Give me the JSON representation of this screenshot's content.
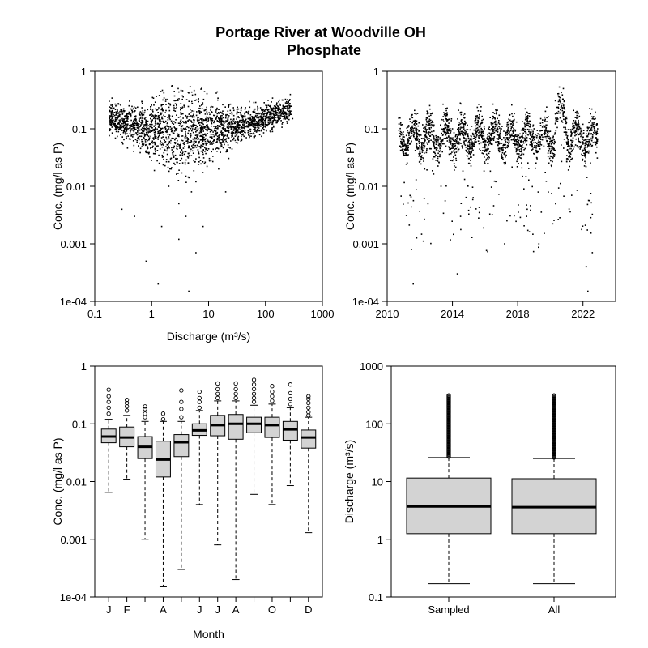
{
  "title": [
    "Portage River at Woodville OH",
    "Phosphate"
  ],
  "chart_data": [
    {
      "type": "scatter",
      "panel": "concentration-vs-discharge",
      "xlabel": "Discharge (m³/s)",
      "ylabel": "Conc. (mg/l as P)",
      "xscale": "log",
      "yscale": "log",
      "xlim": [
        0.1,
        1000
      ],
      "ylim": [
        0.0001,
        1
      ],
      "x_ticks": [
        "0.1",
        "1",
        "10",
        "100",
        "1000"
      ],
      "y_ticks": [
        "1e-04",
        "0.001",
        "0.01",
        "0.1",
        "1"
      ],
      "x_tick_values": [
        0.1,
        1,
        10,
        100,
        1000
      ],
      "y_tick_values": [
        0.0001,
        0.001,
        0.01,
        0.1,
        1
      ],
      "points": [
        [
          0.18,
          0.3
        ],
        [
          0.2,
          0.15
        ],
        [
          0.25,
          0.12
        ],
        [
          0.3,
          0.2
        ],
        [
          0.35,
          0.08
        ],
        [
          0.4,
          0.25
        ],
        [
          0.5,
          0.1
        ],
        [
          0.6,
          0.18
        ],
        [
          0.7,
          0.06
        ],
        [
          0.8,
          0.12
        ],
        [
          1,
          0.09
        ],
        [
          1.2,
          0.15
        ],
        [
          1.5,
          0.07
        ],
        [
          2,
          0.1
        ],
        [
          2.5,
          0.05
        ],
        [
          3,
          0.08
        ],
        [
          4,
          0.04
        ],
        [
          5,
          0.06
        ],
        [
          6,
          0.03
        ],
        [
          8,
          0.05
        ],
        [
          10,
          0.06
        ],
        [
          12,
          0.08
        ],
        [
          15,
          0.07
        ],
        [
          20,
          0.09
        ],
        [
          30,
          0.1
        ],
        [
          40,
          0.12
        ],
        [
          60,
          0.11
        ],
        [
          80,
          0.13
        ],
        [
          100,
          0.12
        ],
        [
          150,
          0.14
        ],
        [
          200,
          0.13
        ],
        [
          300,
          0.15
        ],
        [
          2,
          0.01
        ],
        [
          3,
          0.005
        ],
        [
          4,
          0.003
        ],
        [
          5,
          0.008
        ],
        [
          1.5,
          0.002
        ],
        [
          0.8,
          0.0005
        ],
        [
          1.3,
          0.0002
        ],
        [
          4.5,
          0.00015
        ],
        [
          6,
          0.0007
        ],
        [
          3,
          0.0012
        ],
        [
          8,
          0.002
        ],
        [
          0.3,
          0.004
        ],
        [
          0.5,
          0.003
        ],
        [
          20,
          0.008
        ],
        [
          15,
          0.02
        ],
        [
          2.2,
          0.02
        ],
        [
          4,
          0.015
        ],
        [
          6,
          0.012
        ]
      ]
    },
    {
      "type": "scatter",
      "panel": "concentration-vs-time",
      "xlabel": "",
      "ylabel": "Conc. (mg/l as P)",
      "yscale": "log",
      "xlim": [
        2010,
        2024
      ],
      "ylim": [
        0.0001,
        1
      ],
      "x_ticks": [
        "2010",
        "2014",
        "2018",
        "2022"
      ],
      "y_ticks": [
        "1e-04",
        "0.001",
        "0.01",
        "0.1",
        "1"
      ],
      "x_tick_values": [
        2010,
        2014,
        2018,
        2022
      ],
      "y_tick_values": [
        0.0001,
        0.001,
        0.01,
        0.1,
        1
      ],
      "x_range_of_data": [
        2010.7,
        2022.9
      ],
      "points": [
        [
          2010.8,
          0.05
        ],
        [
          2011,
          0.08
        ],
        [
          2011.3,
          0.06
        ],
        [
          2011.5,
          0.0008
        ],
        [
          2011.6,
          0.0002
        ],
        [
          2011.8,
          0.1
        ],
        [
          2012,
          0.04
        ],
        [
          2012.3,
          0.02
        ],
        [
          2012.5,
          0.005
        ],
        [
          2012.8,
          0.03
        ],
        [
          2013,
          0.06
        ],
        [
          2013.3,
          0.01
        ],
        [
          2013.6,
          0.05
        ],
        [
          2014,
          0.1
        ],
        [
          2014.3,
          0.0003
        ],
        [
          2014.5,
          0.003
        ],
        [
          2014.8,
          0.08
        ],
        [
          2015,
          0.05
        ],
        [
          2015.5,
          0.12
        ],
        [
          2016,
          0.06
        ],
        [
          2016.5,
          0.09
        ],
        [
          2017,
          0.1
        ],
        [
          2017.2,
          0.001
        ],
        [
          2017.5,
          0.07
        ],
        [
          2018,
          0.08
        ],
        [
          2018.5,
          0.06
        ],
        [
          2019,
          0.1
        ],
        [
          2019.3,
          0.001
        ],
        [
          2019.6,
          0.05
        ],
        [
          2020,
          0.09
        ],
        [
          2020.5,
          0.2
        ],
        [
          2020.8,
          0.5
        ],
        [
          2021,
          0.15
        ],
        [
          2021.3,
          0.04
        ],
        [
          2021.6,
          0.1
        ],
        [
          2022,
          0.12
        ],
        [
          2022.2,
          0.0004
        ],
        [
          2022.3,
          0.00015
        ],
        [
          2022.6,
          0.15
        ],
        [
          2022.9,
          0.1
        ]
      ]
    },
    {
      "type": "boxplot",
      "panel": "concentration-by-month",
      "xlabel": "Month",
      "ylabel": "Conc. (mg/l as P)",
      "yscale": "log",
      "ylim": [
        0.0001,
        1
      ],
      "y_ticks": [
        "1e-04",
        "0.001",
        "0.01",
        "0.1",
        "1"
      ],
      "y_tick_values": [
        0.0001,
        0.001,
        0.01,
        0.1,
        1
      ],
      "month_labels": [
        "J",
        "F",
        "",
        "A",
        "",
        "J",
        "J",
        "A",
        "",
        "O",
        "",
        "D"
      ],
      "boxes": [
        {
          "month": 1,
          "wlo": 0.0065,
          "q1": 0.047,
          "med": 0.06,
          "q3": 0.081,
          "whi": 0.12,
          "outliers": [
            0.15,
            0.19,
            0.24,
            0.3,
            0.39
          ]
        },
        {
          "month": 2,
          "wlo": 0.011,
          "q1": 0.04,
          "med": 0.058,
          "q3": 0.088,
          "whi": 0.14,
          "outliers": [
            0.17,
            0.2,
            0.23,
            0.26
          ]
        },
        {
          "month": 3,
          "wlo": 0.001,
          "q1": 0.025,
          "med": 0.04,
          "q3": 0.06,
          "whi": 0.11,
          "outliers": [
            0.13,
            0.15,
            0.18,
            0.2
          ]
        },
        {
          "month": 4,
          "wlo": 0.00015,
          "q1": 0.012,
          "med": 0.024,
          "q3": 0.05,
          "whi": 0.11,
          "outliers": [
            0.12,
            0.15
          ]
        },
        {
          "month": 5,
          "wlo": 0.0003,
          "q1": 0.027,
          "med": 0.048,
          "q3": 0.065,
          "whi": 0.11,
          "outliers": [
            0.13,
            0.18,
            0.24,
            0.38
          ]
        },
        {
          "month": 6,
          "wlo": 0.004,
          "q1": 0.063,
          "med": 0.077,
          "q3": 0.1,
          "whi": 0.17,
          "outliers": [
            0.19,
            0.24,
            0.28,
            0.36
          ]
        },
        {
          "month": 7,
          "wlo": 0.0008,
          "q1": 0.062,
          "med": 0.095,
          "q3": 0.14,
          "whi": 0.25,
          "outliers": [
            0.28,
            0.33,
            0.4,
            0.5
          ]
        },
        {
          "month": 8,
          "wlo": 0.0002,
          "q1": 0.054,
          "med": 0.1,
          "q3": 0.145,
          "whi": 0.25,
          "outliers": [
            0.28,
            0.33,
            0.4,
            0.5
          ]
        },
        {
          "month": 9,
          "wlo": 0.006,
          "q1": 0.07,
          "med": 0.1,
          "q3": 0.13,
          "whi": 0.21,
          "outliers": [
            0.24,
            0.28,
            0.33,
            0.4,
            0.48,
            0.58
          ]
        },
        {
          "month": 10,
          "wlo": 0.004,
          "q1": 0.058,
          "med": 0.095,
          "q3": 0.13,
          "whi": 0.22,
          "outliers": [
            0.25,
            0.3,
            0.36,
            0.45
          ]
        },
        {
          "month": 11,
          "wlo": 0.0085,
          "q1": 0.052,
          "med": 0.08,
          "q3": 0.11,
          "whi": 0.19,
          "outliers": [
            0.22,
            0.27,
            0.34,
            0.48
          ]
        },
        {
          "month": 12,
          "wlo": 0.0013,
          "q1": 0.038,
          "med": 0.058,
          "q3": 0.078,
          "whi": 0.13,
          "outliers": [
            0.14,
            0.16,
            0.19,
            0.23,
            0.27,
            0.3
          ]
        }
      ]
    },
    {
      "type": "boxplot",
      "panel": "discharge-sampled-vs-all",
      "xlabel": "",
      "ylabel": "Discharge (m³/s)",
      "yscale": "log",
      "ylim": [
        0.1,
        1000
      ],
      "y_ticks": [
        "0.1",
        "1",
        "10",
        "100",
        "1000"
      ],
      "y_tick_values": [
        0.1,
        1,
        10,
        100,
        1000
      ],
      "boxes": [
        {
          "label": "Sampled",
          "wlo": 0.17,
          "q1": 1.25,
          "med": 3.7,
          "q3": 11.5,
          "whi": 26,
          "outlier_range": [
            27,
            320
          ]
        },
        {
          "label": "All",
          "wlo": 0.17,
          "q1": 1.25,
          "med": 3.6,
          "q3": 11.2,
          "whi": 25,
          "outlier_range": [
            26,
            320
          ]
        }
      ]
    }
  ]
}
